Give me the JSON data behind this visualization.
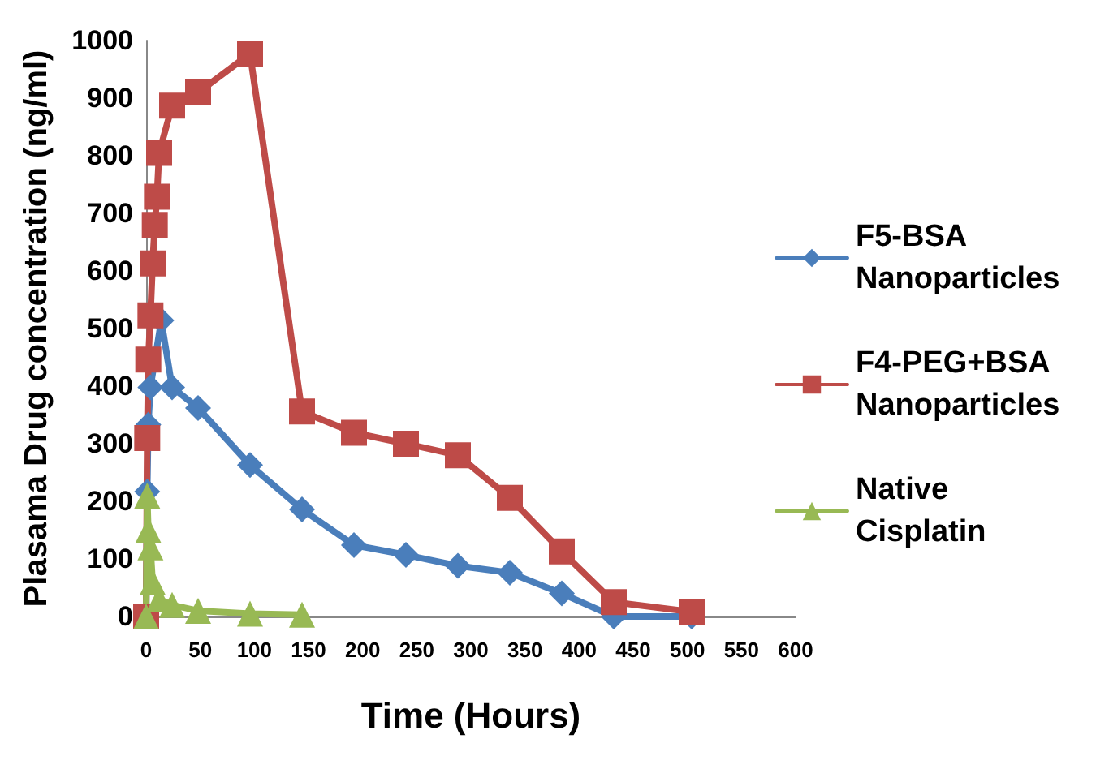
{
  "chart_data": {
    "type": "line",
    "xlabel": "Time (Hours)",
    "ylabel": "Plasama Drug concentration (ng/ml)",
    "xlim": [
      0,
      600
    ],
    "xticks": [
      0,
      50,
      100,
      150,
      200,
      250,
      300,
      350,
      400,
      450,
      500,
      550,
      600
    ],
    "ylim": [
      0,
      1000
    ],
    "yticks": [
      0,
      100,
      200,
      300,
      400,
      500,
      600,
      700,
      800,
      900,
      1000
    ],
    "grid": false,
    "legend": "right",
    "line_style": "solid",
    "series": [
      {
        "name": "F5-BSA Nanoparticles",
        "color": "#4a7ebb",
        "marker": "diamond",
        "x": [
          0,
          1,
          2,
          4,
          14,
          24,
          48,
          96,
          144,
          192,
          240,
          288,
          336,
          384,
          432,
          504
        ],
        "values": [
          0,
          217,
          333,
          398,
          514,
          398,
          362,
          263,
          186,
          124,
          107,
          88,
          76,
          40,
          0,
          0
        ]
      },
      {
        "name": "F4-PEG+BSA Nanoparticles",
        "color": "#be4b48",
        "marker": "square",
        "x": [
          0,
          1,
          2,
          4,
          6,
          8,
          10,
          12,
          24,
          48,
          96,
          144,
          192,
          240,
          288,
          336,
          384,
          432,
          504
        ],
        "values": [
          0,
          310,
          446,
          523,
          613,
          680,
          729,
          805,
          887,
          910,
          977,
          356,
          319,
          300,
          280,
          206,
          113,
          25,
          8
        ]
      },
      {
        "name": "Native Cisplatin",
        "color": "#98b954",
        "marker": "triangle",
        "x": [
          0,
          1,
          2,
          4,
          6,
          12,
          24,
          48,
          96,
          144
        ],
        "values": [
          0,
          210,
          150,
          120,
          60,
          30,
          20,
          10,
          5,
          3
        ]
      }
    ]
  }
}
